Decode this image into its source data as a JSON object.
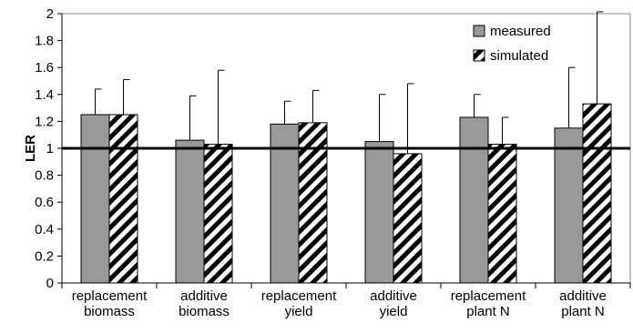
{
  "chart_data": {
    "type": "bar",
    "title": "",
    "xlabel": "",
    "ylabel": "LER",
    "ylim": [
      0,
      2
    ],
    "yticks": [
      "0",
      "0.2",
      "0.4",
      "0.6",
      "0.8",
      "1",
      "1.2",
      "1.4",
      "1.6",
      "1.8",
      "2"
    ],
    "categories": [
      [
        "replacement",
        "biomass"
      ],
      [
        "additive",
        "biomass"
      ],
      [
        "replacement",
        "yield"
      ],
      [
        "additive",
        "yield"
      ],
      [
        "replacement",
        "plant N"
      ],
      [
        "additive",
        "plant N"
      ]
    ],
    "series": [
      {
        "name": "measured",
        "color": "#999999",
        "pattern": "solid",
        "values": [
          1.25,
          1.06,
          1.18,
          1.05,
          1.23,
          1.15
        ],
        "error_upper": [
          1.44,
          1.39,
          1.35,
          1.4,
          1.4,
          1.6
        ]
      },
      {
        "name": "simulated",
        "color": "#000000",
        "pattern": "diagonal-stripes",
        "values": [
          1.25,
          1.03,
          1.19,
          0.96,
          1.03,
          1.33
        ],
        "error_upper": [
          1.51,
          1.58,
          1.43,
          1.48,
          1.23,
          2.03
        ]
      }
    ],
    "reference_line": 1,
    "grid": false,
    "legend_position": "top-right"
  }
}
